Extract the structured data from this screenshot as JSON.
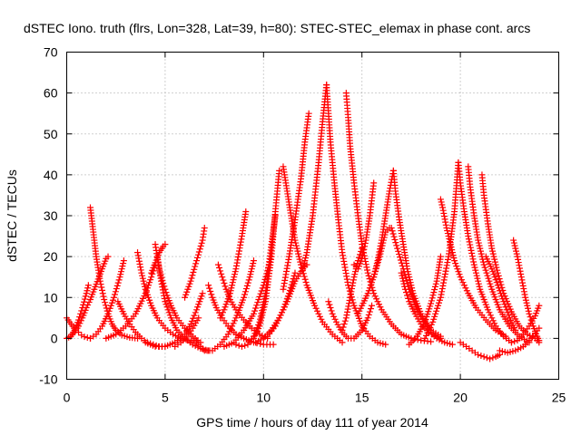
{
  "chart_data": {
    "type": "scatter",
    "title": "dSTEC Iono. truth (flrs, Lon=328, Lat=39, h=80): STEC-STEC_elemax in phase cont. arcs",
    "xlabel": "GPS time / hours of day 111 of year 2014",
    "ylabel": "dSTEC  / TECUs",
    "xlim": [
      0,
      25
    ],
    "ylim": [
      -10,
      70
    ],
    "xticks": [
      0,
      5,
      10,
      15,
      20,
      25
    ],
    "yticks": [
      -10,
      0,
      10,
      20,
      30,
      40,
      50,
      60,
      70
    ],
    "grid": true,
    "legend": "none",
    "marker": "plus",
    "color": "#ff0000",
    "series": [
      {
        "x": [
          0.0,
          0.15,
          0.3,
          0.45,
          0.6,
          0.75,
          0.9,
          1.05,
          1.2
        ],
        "y": [
          5.0,
          4.0,
          3.0,
          2.0,
          1.5,
          0.8,
          0.4,
          0.2,
          0.0
        ]
      },
      {
        "x": [
          0.0,
          0.2,
          0.4,
          0.6,
          0.8,
          1.0,
          1.2,
          1.4,
          1.6,
          1.8,
          2.0,
          2.1
        ],
        "y": [
          0.0,
          0.5,
          1.5,
          3.0,
          5.0,
          7.5,
          9.5,
          12.0,
          14.5,
          17.0,
          19.5,
          20.0
        ]
      },
      {
        "x": [
          0.2,
          0.4,
          0.6,
          0.8,
          1.0,
          1.1
        ],
        "y": [
          0.5,
          2.0,
          4.5,
          7.5,
          11.0,
          13.0
        ]
      },
      {
        "x": [
          1.2,
          1.35,
          1.5,
          1.7,
          1.9,
          2.1,
          2.3,
          2.5,
          2.8,
          3.2,
          3.6
        ],
        "y": [
          32.0,
          26.0,
          20.0,
          14.0,
          9.5,
          6.0,
          3.5,
          2.0,
          0.8,
          0.2,
          0.0
        ]
      },
      {
        "x": [
          1.2,
          1.5,
          1.8,
          2.1,
          2.4,
          2.7,
          2.9
        ],
        "y": [
          0.0,
          1.0,
          3.0,
          6.0,
          10.0,
          15.0,
          19.0
        ]
      },
      {
        "x": [
          2.6,
          2.9,
          3.2,
          3.5,
          3.8,
          4.1,
          4.4,
          4.7,
          5.0
        ],
        "y": [
          9.0,
          6.0,
          3.5,
          1.5,
          0.0,
          -1.0,
          -1.5,
          -2.0,
          -2.0
        ]
      },
      {
        "x": [
          3.6,
          3.8,
          4.0,
          4.3,
          4.6,
          5.0,
          5.4,
          5.8,
          6.2,
          6.6
        ],
        "y": [
          21.0,
          16.0,
          12.0,
          8.0,
          5.0,
          2.5,
          1.0,
          0.0,
          -0.5,
          -0.5
        ]
      },
      {
        "x": [
          2.0,
          2.5,
          3.0,
          3.5,
          4.0,
          4.3,
          4.5
        ],
        "y": [
          0.0,
          1.0,
          3.0,
          6.0,
          11.0,
          15.0,
          18.0
        ]
      },
      {
        "x": [
          4.5,
          4.6,
          4.7,
          4.9,
          5.1,
          5.3,
          5.6,
          6.0,
          6.4,
          6.8
        ],
        "y": [
          23.0,
          20.0,
          17.0,
          13.5,
          10.5,
          8.0,
          5.0,
          2.5,
          0.5,
          -1.0
        ]
      },
      {
        "x": [
          4.3,
          4.5,
          4.7,
          4.9,
          5.0
        ],
        "y": [
          16.0,
          18.5,
          21.0,
          22.5,
          23.0
        ]
      },
      {
        "x": [
          4.6,
          4.8,
          5.0,
          5.3,
          5.6,
          6.0,
          6.4,
          6.8,
          7.2
        ],
        "y": [
          20.0,
          14.0,
          9.0,
          5.0,
          2.0,
          0.0,
          -1.5,
          -2.5,
          -3.0
        ]
      },
      {
        "x": [
          4.0,
          4.5,
          5.0,
          5.5,
          6.0,
          6.3,
          6.6,
          6.9
        ],
        "y": [
          -1.0,
          -2.0,
          -2.0,
          -1.0,
          1.0,
          3.5,
          7.0,
          11.0
        ]
      },
      {
        "x": [
          6.0,
          6.3,
          6.6,
          6.9,
          7.0
        ],
        "y": [
          10.0,
          14.0,
          19.0,
          24.0,
          27.0
        ]
      },
      {
        "x": [
          5.5,
          5.8,
          6.1,
          6.4,
          6.7
        ],
        "y": [
          -2.0,
          -1.0,
          0.5,
          2.5,
          5.0
        ]
      },
      {
        "x": [
          6.6,
          7.0,
          7.4,
          7.8,
          8.2,
          8.6,
          9.0,
          9.3,
          9.5
        ],
        "y": [
          -1.0,
          -3.0,
          -3.0,
          -1.5,
          1.0,
          5.0,
          10.0,
          15.0,
          19.0
        ]
      },
      {
        "x": [
          7.2,
          7.4,
          7.6,
          7.9,
          8.2,
          8.6,
          9.0,
          9.5,
          10.0,
          10.5
        ],
        "y": [
          13.0,
          10.0,
          7.5,
          5.0,
          3.0,
          1.0,
          0.0,
          -1.0,
          -1.5,
          -1.5
        ]
      },
      {
        "x": [
          7.7,
          7.9,
          8.1,
          8.3,
          8.6,
          9.0,
          9.4,
          9.8,
          10.2
        ],
        "y": [
          18.0,
          15.0,
          12.0,
          9.5,
          7.0,
          4.5,
          2.5,
          1.0,
          0.0
        ]
      },
      {
        "x": [
          7.8,
          8.0,
          8.3,
          8.6,
          8.9,
          9.1
        ],
        "y": [
          5.0,
          7.0,
          11.0,
          17.0,
          25.0,
          31.0
        ]
      },
      {
        "x": [
          8.0,
          8.5,
          9.0,
          9.5,
          10.0,
          10.4
        ],
        "y": [
          -2.0,
          -1.0,
          2.0,
          6.0,
          13.0,
          20.0
        ]
      },
      {
        "x": [
          8.6,
          8.9,
          9.2,
          9.5,
          9.8,
          10.1,
          10.4,
          10.6
        ],
        "y": [
          -1.5,
          -2.0,
          -1.5,
          0.5,
          4.0,
          11.0,
          23.0,
          30.0
        ]
      },
      {
        "x": [
          9.5,
          9.8,
          10.1,
          10.4,
          10.6,
          10.8
        ],
        "y": [
          0.0,
          3.0,
          9.0,
          20.0,
          31.0,
          41.0
        ]
      },
      {
        "x": [
          9.6,
          10.0,
          10.4,
          10.8,
          11.2,
          11.6,
          12.0,
          12.2
        ],
        "y": [
          -1.0,
          0.0,
          2.0,
          5.0,
          9.0,
          14.0,
          17.0,
          18.0
        ]
      },
      {
        "x": [
          10.2,
          10.6,
          11.0,
          11.3,
          11.6
        ],
        "y": [
          0.5,
          3.0,
          7.0,
          11.0,
          16.0
        ]
      },
      {
        "x": [
          11.0,
          11.2,
          11.4,
          11.6,
          11.9,
          12.2,
          12.6,
          13.0,
          13.5,
          14.0
        ],
        "y": [
          42.0,
          36.0,
          30.0,
          24.0,
          18.0,
          13.0,
          8.0,
          4.0,
          1.0,
          -1.0
        ]
      },
      {
        "x": [
          11.0,
          11.3,
          11.6,
          11.9,
          12.1,
          12.3
        ],
        "y": [
          12.0,
          20.0,
          29.0,
          39.0,
          48.0,
          55.0
        ]
      },
      {
        "x": [
          12.0,
          12.2,
          12.5,
          12.8,
          13.0,
          13.2
        ],
        "y": [
          17.0,
          21.0,
          30.0,
          43.0,
          53.0,
          62.0
        ]
      },
      {
        "x": [
          13.2,
          13.3,
          13.4,
          13.6,
          13.8,
          14.0,
          14.3,
          14.6,
          15.0,
          15.4,
          15.8,
          16.2
        ],
        "y": [
          62.0,
          55.0,
          48.0,
          38.0,
          29.0,
          21.0,
          13.0,
          8.0,
          3.0,
          0.5,
          -1.0,
          -1.5
        ]
      },
      {
        "x": [
          13.3,
          13.5,
          13.7,
          14.0,
          14.3,
          14.6,
          15.0,
          15.3,
          15.5
        ],
        "y": [
          9.0,
          6.0,
          4.0,
          1.5,
          0.0,
          0.0,
          2.0,
          5.0,
          8.0
        ]
      },
      {
        "x": [
          14.2,
          14.3,
          14.4,
          14.6,
          14.8,
          15.0,
          15.3,
          15.6,
          16.0,
          16.5,
          17.0,
          17.5,
          18.0,
          18.5
        ],
        "y": [
          60.0,
          54.0,
          47.0,
          38.0,
          30.0,
          23.0,
          16.0,
          11.0,
          7.0,
          3.5,
          1.0,
          0.0,
          -0.5,
          -0.8
        ]
      },
      {
        "x": [
          14.0,
          14.2,
          14.4,
          14.6,
          14.8,
          15.0
        ],
        "y": [
          2.0,
          5.0,
          10.0,
          15.0,
          19.0,
          22.0
        ]
      },
      {
        "x": [
          14.6,
          14.8,
          15.0,
          15.2,
          15.4,
          15.6
        ],
        "y": [
          18.0,
          17.0,
          19.5,
          24.0,
          30.0,
          38.0
        ]
      },
      {
        "x": [
          14.8,
          15.0,
          15.3,
          15.6,
          15.9,
          16.2,
          16.4
        ],
        "y": [
          6.0,
          8.0,
          11.0,
          15.0,
          20.0,
          26.0,
          27.0
        ]
      },
      {
        "x": [
          15.6,
          15.8,
          16.0,
          16.2,
          16.4,
          16.6
        ],
        "y": [
          15.0,
          19.0,
          24.0,
          30.0,
          36.0,
          41.0
        ]
      },
      {
        "x": [
          16.6,
          16.7,
          16.9,
          17.1,
          17.3,
          17.6,
          18.0,
          18.5,
          19.0
        ],
        "y": [
          41.0,
          36.0,
          29.0,
          23.0,
          17.0,
          11.0,
          6.0,
          2.0,
          0.5
        ]
      },
      {
        "x": [
          16.5,
          16.8,
          17.1,
          17.4,
          17.8,
          18.2,
          18.6,
          19.0
        ],
        "y": [
          27.0,
          22.0,
          17.0,
          12.0,
          7.0,
          3.5,
          1.0,
          0.0
        ]
      },
      {
        "x": [
          17.0,
          17.2,
          17.4,
          17.7,
          18.0,
          18.4,
          18.8,
          19.2,
          19.6
        ],
        "y": [
          16.0,
          12.0,
          9.0,
          6.0,
          3.5,
          1.5,
          0.0,
          -1.0,
          -1.5
        ]
      },
      {
        "x": [
          17.4,
          17.8,
          18.2,
          18.5,
          18.8,
          19.0
        ],
        "y": [
          -1.5,
          0.5,
          4.0,
          8.5,
          14.0,
          20.0
        ]
      },
      {
        "x": [
          18.2,
          18.6,
          19.0,
          19.4,
          19.7,
          19.9
        ],
        "y": [
          0.0,
          4.0,
          10.0,
          20.0,
          31.0,
          43.0
        ]
      },
      {
        "x": [
          19.0,
          19.1,
          19.3,
          19.5,
          19.7,
          20.0,
          20.4,
          20.8,
          21.3,
          21.8,
          22.3
        ],
        "y": [
          34.0,
          32.0,
          27.0,
          23.0,
          19.0,
          15.0,
          11.0,
          7.5,
          4.5,
          2.0,
          0.5
        ]
      },
      {
        "x": [
          19.9,
          20.0,
          20.2,
          20.4,
          20.7,
          21.0,
          21.4,
          21.8,
          22.2,
          22.6
        ],
        "y": [
          43.0,
          38.0,
          31.0,
          25.0,
          18.0,
          12.0,
          7.0,
          3.0,
          0.5,
          -1.0
        ]
      },
      {
        "x": [
          20.4,
          20.5,
          20.7,
          20.9,
          21.2,
          21.6,
          22.0,
          22.5,
          23.0,
          23.5
        ],
        "y": [
          42.0,
          37.0,
          30.0,
          24.0,
          18.0,
          12.0,
          7.0,
          3.0,
          0.5,
          -1.0
        ]
      },
      {
        "x": [
          21.1,
          21.2,
          21.4,
          21.6,
          21.9,
          22.2,
          22.6,
          23.0,
          23.4,
          23.8,
          24.0
        ],
        "y": [
          40.0,
          35.0,
          28.0,
          22.0,
          16.0,
          11.0,
          6.5,
          3.0,
          1.0,
          0.0,
          -1.0
        ]
      },
      {
        "x": [
          20.0,
          20.3,
          20.6,
          20.9,
          21.2,
          21.5,
          21.8,
          22.0
        ],
        "y": [
          -1.0,
          -2.0,
          -3.0,
          -4.0,
          -4.5,
          -5.0,
          -4.5,
          -4.0
        ]
      },
      {
        "x": [
          21.3,
          21.6,
          21.9,
          22.2,
          22.5,
          22.8
        ],
        "y": [
          20.0,
          17.0,
          13.0,
          9.0,
          5.0,
          2.0
        ]
      },
      {
        "x": [
          22.7,
          22.9,
          23.1,
          23.3,
          23.5,
          23.7,
          23.9,
          24.0
        ],
        "y": [
          24.0,
          20.0,
          15.0,
          10.0,
          6.0,
          3.0,
          0.5,
          -0.5
        ]
      },
      {
        "x": [
          22.0,
          22.4,
          22.8,
          23.2,
          23.6,
          24.0
        ],
        "y": [
          -3.0,
          -3.5,
          -3.0,
          -2.0,
          0.0,
          2.5
        ]
      },
      {
        "x": [
          22.6,
          22.9,
          23.2,
          23.5,
          23.8,
          24.0
        ],
        "y": [
          -1.0,
          -0.5,
          1.0,
          3.0,
          5.5,
          8.0
        ]
      }
    ]
  }
}
